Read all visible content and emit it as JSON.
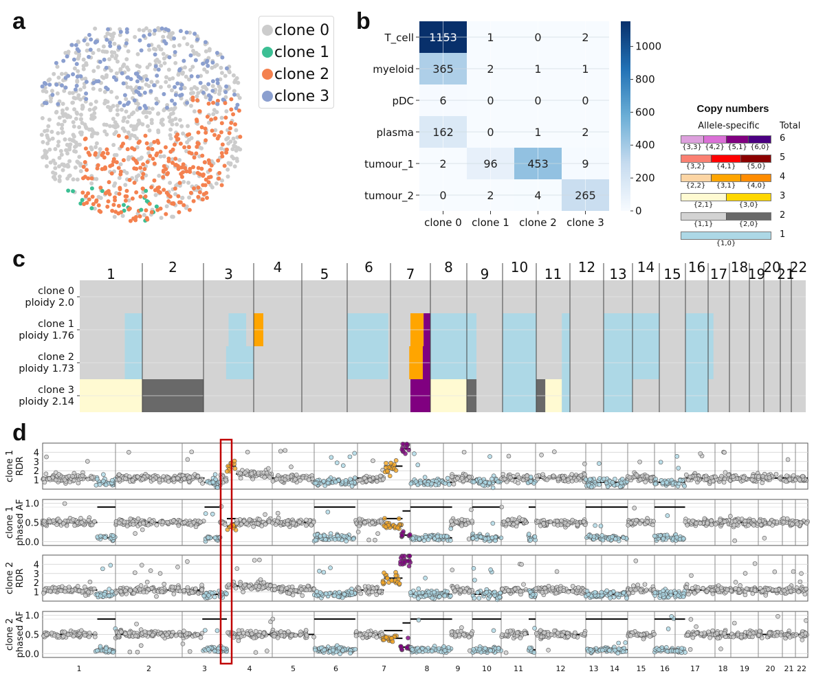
{
  "panel_letters": {
    "a": "a",
    "b": "b",
    "c": "c",
    "d": "d"
  },
  "chart_data": [
    {
      "id": "a",
      "type": "scatter",
      "title": "",
      "description": "Spatial map of spots colored by inferred clone",
      "legend_position": "top-right",
      "legend": [
        {
          "label": "clone 0",
          "color": "#cccccc"
        },
        {
          "label": "clone 1",
          "color": "#3cbf94"
        },
        {
          "label": "clone 2",
          "color": "#f4814f"
        },
        {
          "label": "clone 3",
          "color": "#8b9fcf"
        }
      ]
    },
    {
      "id": "b",
      "type": "heatmap",
      "rows": [
        "T_cell",
        "myeloid",
        "pDC",
        "plasma",
        "tumour_1",
        "tumour_2"
      ],
      "columns": [
        "clone 0",
        "clone 1",
        "clone 2",
        "clone 3"
      ],
      "values": [
        [
          1153,
          1,
          0,
          2
        ],
        [
          365,
          2,
          1,
          1
        ],
        [
          6,
          0,
          0,
          0
        ],
        [
          162,
          0,
          1,
          2
        ],
        [
          2,
          96,
          453,
          9
        ],
        [
          0,
          2,
          4,
          265
        ]
      ],
      "colorbar": {
        "min": 0,
        "max": 1153,
        "ticks": [
          0,
          200,
          400,
          600,
          800,
          1000
        ],
        "colormap": "Blues"
      }
    },
    {
      "id": "c",
      "type": "heatmap",
      "description": "Allele-specific copy number per clone across chromosomes",
      "chromosomes": [
        "1",
        "2",
        "3",
        "4",
        "5",
        "6",
        "7",
        "8",
        "9",
        "10",
        "11",
        "12",
        "13",
        "14",
        "15",
        "16",
        "17",
        "18",
        "19",
        "20",
        "21",
        "22"
      ],
      "rows": [
        {
          "clone": "clone 0",
          "ploidy": "ploidy 2.0"
        },
        {
          "clone": "clone 1",
          "ploidy": "ploidy 1.76"
        },
        {
          "clone": "clone 2",
          "ploidy": "ploidy 1.73"
        },
        {
          "clone": "clone 3",
          "ploidy": "ploidy 2.14"
        }
      ],
      "background_state": "{1,1}",
      "segments": [
        {
          "clone": 1,
          "chr": "1",
          "from": 0.72,
          "to": 1.0,
          "state": "{1,0}"
        },
        {
          "clone": 2,
          "chr": "1",
          "from": 0.72,
          "to": 1.0,
          "state": "{1,0}"
        },
        {
          "clone": 3,
          "chr": "1",
          "from": 0.0,
          "to": 1.0,
          "state": "{2,1}"
        },
        {
          "clone": 3,
          "chr": "2",
          "from": 0.0,
          "to": 1.0,
          "state": "{2,0}"
        },
        {
          "clone": 1,
          "chr": "3",
          "from": 0.5,
          "to": 0.85,
          "state": "{1,0}"
        },
        {
          "clone": 2,
          "chr": "3",
          "from": 0.45,
          "to": 1.0,
          "state": "{1,0}"
        },
        {
          "clone": 1,
          "chr": "4",
          "from": 0.0,
          "to": 0.2,
          "state": "{3,1}"
        },
        {
          "clone": 1,
          "chr": "6",
          "from": 0.0,
          "to": 0.95,
          "state": "{1,0}"
        },
        {
          "clone": 2,
          "chr": "6",
          "from": 0.0,
          "to": 0.95,
          "state": "{1,0}"
        },
        {
          "clone": 1,
          "chr": "7",
          "from": 0.5,
          "to": 0.83,
          "state": "{3,1}"
        },
        {
          "clone": 2,
          "chr": "7",
          "from": 0.47,
          "to": 0.81,
          "state": "{3,1}"
        },
        {
          "clone": 1,
          "chr": "7",
          "from": 0.83,
          "to": 1.0,
          "state": "{5,1}"
        },
        {
          "clone": 2,
          "chr": "7",
          "from": 0.81,
          "to": 1.0,
          "state": "{5,1}"
        },
        {
          "clone": 3,
          "chr": "7",
          "from": 0.5,
          "to": 1.0,
          "state": "{5,1}"
        },
        {
          "clone": 1,
          "chr": "8",
          "from": 0.0,
          "to": 1.0,
          "state": "{1,0}"
        },
        {
          "clone": 2,
          "chr": "8",
          "from": 0.0,
          "to": 1.0,
          "state": "{1,0}"
        },
        {
          "clone": 3,
          "chr": "8",
          "from": 0.0,
          "to": 1.0,
          "state": "{2,1}"
        },
        {
          "clone": 1,
          "chr": "9",
          "from": 0.0,
          "to": 0.27,
          "state": "{1,0}"
        },
        {
          "clone": 2,
          "chr": "9",
          "from": 0.0,
          "to": 0.27,
          "state": "{1,0}"
        },
        {
          "clone": 3,
          "chr": "9",
          "from": 0.0,
          "to": 0.27,
          "state": "{2,0}"
        },
        {
          "clone": 1,
          "chr": "10",
          "from": 0.0,
          "to": 1.0,
          "state": "{1,0}"
        },
        {
          "clone": 2,
          "chr": "10",
          "from": 0.0,
          "to": 1.0,
          "state": "{1,0}"
        },
        {
          "clone": 3,
          "chr": "10",
          "from": 0.0,
          "to": 1.0,
          "state": "{1,0}"
        },
        {
          "clone": 3,
          "chr": "11",
          "from": 0.0,
          "to": 0.27,
          "state": "{2,0}"
        },
        {
          "clone": 3,
          "chr": "11",
          "from": 0.27,
          "to": 0.76,
          "state": "{2,1}"
        },
        {
          "clone": 1,
          "chr": "11",
          "from": 0.76,
          "to": 1.0,
          "state": "{1,0}"
        },
        {
          "clone": 2,
          "chr": "11",
          "from": 0.76,
          "to": 1.0,
          "state": "{1,0}"
        },
        {
          "clone": 3,
          "chr": "11",
          "from": 0.76,
          "to": 1.0,
          "state": "{1,0}"
        },
        {
          "clone": 1,
          "chr": "13",
          "from": 0.0,
          "to": 1.0,
          "state": "{1,0}"
        },
        {
          "clone": 2,
          "chr": "13",
          "from": 0.0,
          "to": 1.0,
          "state": "{1,0}"
        },
        {
          "clone": 3,
          "chr": "13",
          "from": 0.0,
          "to": 1.0,
          "state": "{1,0}"
        },
        {
          "clone": 1,
          "chr": "14",
          "from": 0.0,
          "to": 1.0,
          "state": "{1,0}"
        },
        {
          "clone": 2,
          "chr": "14",
          "from": 0.0,
          "to": 1.0,
          "state": "{1,0}"
        },
        {
          "clone": 1,
          "chr": "16",
          "from": 0.0,
          "to": 1.0,
          "state": "{1,0}"
        },
        {
          "clone": 2,
          "chr": "16",
          "from": 0.0,
          "to": 1.0,
          "state": "{1,0}"
        },
        {
          "clone": 3,
          "chr": "16",
          "from": 0.0,
          "to": 1.0,
          "state": "{1,0}"
        },
        {
          "clone": 1,
          "chr": "17",
          "from": 0.0,
          "to": 0.25,
          "state": "{1,0}"
        },
        {
          "clone": 2,
          "chr": "17",
          "from": 0.0,
          "to": 0.25,
          "state": "{1,0}"
        }
      ]
    },
    {
      "id": "d",
      "type": "scatter",
      "description": "Per-bin read-depth ratio (RDR) and phased allele frequency (AF) along the genome with segment means",
      "chromosomes": [
        "1",
        "2",
        "3",
        "4",
        "5",
        "6",
        "7",
        "8",
        "9",
        "10",
        "11",
        "12",
        "13",
        "14",
        "15",
        "16",
        "17",
        "18",
        "19",
        "20",
        "21",
        "22"
      ],
      "subplots": [
        {
          "ylabel": [
            "clone 1",
            "RDR"
          ],
          "kind": "rdr",
          "clone": 1,
          "yticks": [
            1,
            2,
            3,
            4
          ],
          "ylim": [
            0,
            5
          ]
        },
        {
          "ylabel": [
            "clone 1",
            "phased AF"
          ],
          "kind": "af",
          "clone": 1,
          "yticks": [
            0.0,
            0.5,
            1.0
          ],
          "ytick_labels": [
            "0.0",
            "0.5",
            "1.0"
          ],
          "ylim": [
            -0.1,
            1.1
          ]
        },
        {
          "ylabel": [
            "clone 2",
            "RDR"
          ],
          "kind": "rdr",
          "clone": 2,
          "yticks": [
            1,
            2,
            3,
            4
          ],
          "ylim": [
            0,
            5
          ]
        },
        {
          "ylabel": [
            "clone 2",
            "phased AF"
          ],
          "kind": "af",
          "clone": 2,
          "yticks": [
            0.0,
            0.5,
            1.0
          ],
          "ytick_labels": [
            "0.0",
            "0.5",
            "1.0"
          ],
          "ylim": [
            -0.1,
            1.1
          ]
        }
      ],
      "segment_levels": {
        "{1,1}": {
          "rdr": 1.2,
          "af": [
            0.5
          ],
          "color": "#cccccc"
        },
        "{1,0}": {
          "rdr": 0.75,
          "af": [
            0.1,
            0.9
          ],
          "color": "#add8e6"
        },
        "{3,1}": {
          "rdr": 2.5,
          "af": [
            0.4,
            0.6
          ],
          "color": "#f5a623"
        },
        "{5,1}": {
          "rdr": 4.4,
          "af": [
            0.17,
            0.8
          ],
          "color": "#800080"
        },
        "amp": {
          "rdr": 1.65,
          "af": [
            0.5
          ],
          "color": "#cccccc"
        }
      },
      "highlight_box": {
        "chr_region": "3q-4p boundary",
        "color": "#c00000"
      }
    }
  ],
  "copy_number_legend": {
    "title": "Copy numbers",
    "col_allele": "Allele-specific",
    "col_total": "Total",
    "rows": [
      {
        "total": "6",
        "states": [
          {
            "label": "{3,3}",
            "color": "#dda0dd"
          },
          {
            "label": "{4,2}",
            "color": "#da70d6"
          },
          {
            "label": "{5,1}",
            "color": "#800080"
          },
          {
            "label": "{6,0}",
            "color": "#4b0082"
          }
        ]
      },
      {
        "total": "5",
        "states": [
          {
            "label": "{3,2}",
            "color": "#fa8072"
          },
          {
            "label": "{4,1}",
            "color": "#ff0000"
          },
          {
            "label": "{5,0}",
            "color": "#8b0000"
          }
        ]
      },
      {
        "total": "4",
        "states": [
          {
            "label": "{2,2}",
            "color": "#fcd5a4"
          },
          {
            "label": "{3,1}",
            "color": "#ffa500"
          },
          {
            "label": "{4,0}",
            "color": "#ff8c00"
          }
        ]
      },
      {
        "total": "3",
        "states": [
          {
            "label": "{2,1}",
            "color": "#fffad2"
          },
          {
            "label": "{3,0}",
            "color": "#ffd700"
          }
        ]
      },
      {
        "total": "2",
        "states": [
          {
            "label": "{1,1}",
            "color": "#d3d3d3"
          },
          {
            "label": "{2,0}",
            "color": "#696969"
          }
        ]
      },
      {
        "total": "1",
        "states": [
          {
            "label": "{1,0}",
            "color": "#add8e6"
          }
        ]
      }
    ]
  }
}
